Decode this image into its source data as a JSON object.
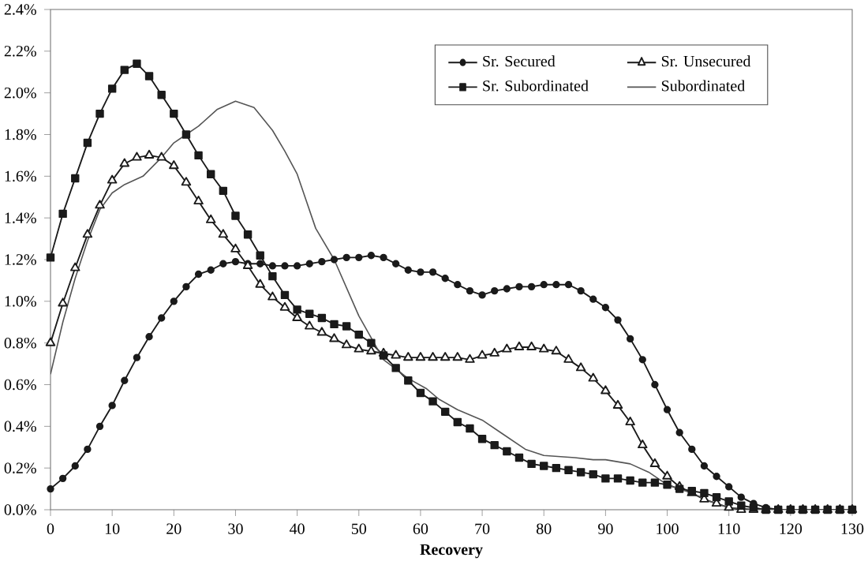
{
  "chart_data": {
    "type": "line",
    "xlabel": "Recovery",
    "xlim": [
      0,
      130
    ],
    "ylim": [
      0,
      2.4
    ],
    "xticks": [
      0,
      10,
      20,
      30,
      40,
      50,
      60,
      70,
      80,
      90,
      100,
      110,
      120,
      130
    ],
    "yticks": [
      {
        "value": 0,
        "label": "0.0%"
      },
      {
        "value": 0.2,
        "label": "0.2%"
      },
      {
        "value": 0.4,
        "label": "0.4%"
      },
      {
        "value": 0.6,
        "label": "0.6%"
      },
      {
        "value": 0.8,
        "label": "0.8%"
      },
      {
        "value": 1.0,
        "label": "1.0%"
      },
      {
        "value": 1.2,
        "label": "1.2%"
      },
      {
        "value": 1.4,
        "label": "1.4%"
      },
      {
        "value": 1.6,
        "label": "1.6%"
      },
      {
        "value": 1.8,
        "label": "1.8%"
      },
      {
        "value": 2.0,
        "label": "2.0%"
      },
      {
        "value": 2.2,
        "label": "2.2%"
      },
      {
        "value": 2.4,
        "label": "2.4%"
      }
    ],
    "x": [
      0,
      2,
      4,
      6,
      8,
      10,
      12,
      14,
      16,
      18,
      20,
      22,
      24,
      26,
      28,
      30,
      32,
      34,
      36,
      38,
      40,
      42,
      44,
      46,
      48,
      50,
      52,
      54,
      56,
      58,
      60,
      62,
      64,
      66,
      68,
      70,
      72,
      74,
      76,
      78,
      80,
      82,
      84,
      86,
      88,
      90,
      92,
      94,
      96,
      98,
      100,
      102,
      104,
      106,
      108,
      110,
      112,
      114,
      116,
      118,
      120,
      122,
      124,
      126,
      128,
      130
    ],
    "legend": "top right",
    "grid": false,
    "series": [
      {
        "name": "Sr. Secured",
        "color": "#1a1a1a",
        "marker": "circle",
        "values": [
          0.1,
          0.15,
          0.21,
          0.29,
          0.4,
          0.5,
          0.62,
          0.73,
          0.83,
          0.92,
          1.0,
          1.07,
          1.13,
          1.15,
          1.18,
          1.19,
          1.18,
          1.18,
          1.17,
          1.17,
          1.17,
          1.18,
          1.19,
          1.2,
          1.21,
          1.21,
          1.22,
          1.21,
          1.18,
          1.15,
          1.14,
          1.14,
          1.11,
          1.08,
          1.05,
          1.03,
          1.05,
          1.06,
          1.07,
          1.07,
          1.08,
          1.08,
          1.08,
          1.05,
          1.01,
          0.97,
          0.91,
          0.82,
          0.72,
          0.6,
          0.48,
          0.37,
          0.29,
          0.21,
          0.16,
          0.11,
          0.06,
          0.03,
          0.01,
          0,
          0,
          0,
          0,
          0,
          0,
          0
        ]
      },
      {
        "name": "Sr. Unsecured",
        "color": "#1a1a1a",
        "marker": "triangle",
        "values": [
          0.8,
          0.99,
          1.16,
          1.32,
          1.46,
          1.58,
          1.66,
          1.69,
          1.7,
          1.69,
          1.65,
          1.57,
          1.48,
          1.39,
          1.32,
          1.25,
          1.17,
          1.08,
          1.02,
          0.97,
          0.92,
          0.88,
          0.85,
          0.82,
          0.79,
          0.77,
          0.76,
          0.75,
          0.74,
          0.73,
          0.73,
          0.73,
          0.73,
          0.73,
          0.72,
          0.74,
          0.75,
          0.77,
          0.78,
          0.78,
          0.77,
          0.76,
          0.72,
          0.68,
          0.63,
          0.57,
          0.5,
          0.42,
          0.31,
          0.22,
          0.16,
          0.11,
          0.08,
          0.05,
          0.03,
          0.01,
          0,
          0,
          0,
          0,
          0,
          0,
          0,
          0,
          0,
          0
        ]
      },
      {
        "name": "Sr. Subordinated",
        "color": "#1a1a1a",
        "marker": "square",
        "values": [
          1.21,
          1.42,
          1.59,
          1.76,
          1.9,
          2.02,
          2.11,
          2.14,
          2.08,
          1.99,
          1.9,
          1.8,
          1.7,
          1.61,
          1.53,
          1.41,
          1.32,
          1.22,
          1.12,
          1.03,
          0.96,
          0.94,
          0.92,
          0.89,
          0.88,
          0.84,
          0.8,
          0.74,
          0.68,
          0.62,
          0.56,
          0.52,
          0.47,
          0.42,
          0.39,
          0.34,
          0.31,
          0.28,
          0.25,
          0.22,
          0.21,
          0.2,
          0.19,
          0.18,
          0.17,
          0.15,
          0.15,
          0.14,
          0.13,
          0.13,
          0.12,
          0.1,
          0.09,
          0.08,
          0.06,
          0.04,
          0.02,
          0.01,
          0,
          0,
          0,
          0,
          0,
          0,
          0,
          0
        ]
      },
      {
        "name": "Subordinated",
        "color": "#555555",
        "marker": "none",
        "x": [
          0,
          2,
          4,
          6,
          8,
          10,
          12,
          15,
          18,
          20,
          22,
          24,
          27,
          30,
          33,
          36,
          38,
          40,
          43,
          46,
          50,
          54,
          58,
          61,
          63,
          66,
          70,
          73,
          77,
          80,
          85,
          88,
          90,
          94,
          97,
          100,
          104,
          107,
          110,
          115,
          130
        ],
        "values": [
          0.65,
          0.9,
          1.11,
          1.29,
          1.44,
          1.52,
          1.56,
          1.6,
          1.69,
          1.76,
          1.8,
          1.84,
          1.92,
          1.96,
          1.93,
          1.82,
          1.72,
          1.61,
          1.35,
          1.2,
          0.93,
          0.72,
          0.63,
          0.58,
          0.53,
          0.48,
          0.43,
          0.37,
          0.29,
          0.26,
          0.25,
          0.24,
          0.24,
          0.22,
          0.18,
          0.12,
          0.08,
          0.04,
          0.01,
          0,
          0
        ]
      }
    ]
  }
}
